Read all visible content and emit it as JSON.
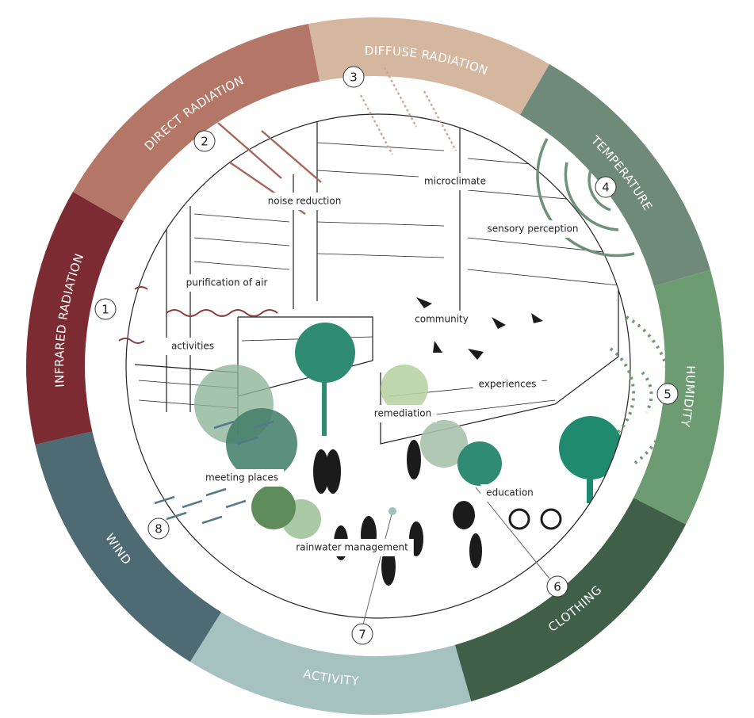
{
  "ring": [
    {
      "label": "DIFFUSE RADIATION"
    },
    {
      "label": "TEMPERATURE"
    },
    {
      "label": "HUMIDITY"
    },
    {
      "label": "CLOTHING"
    },
    {
      "label": "ACTIVITY"
    },
    {
      "label": "WIND"
    },
    {
      "label": "INFRARED RADIATION"
    },
    {
      "label": "DIRECT RADIATION"
    }
  ],
  "markers": [
    "1",
    "2",
    "3",
    "4",
    "5",
    "6",
    "7",
    "8"
  ],
  "labels": [
    "noise reduction",
    "microclimate",
    "sensory perception",
    "purification of air",
    "community",
    "activities",
    "experiences",
    "remediation",
    "meeting places",
    "education",
    "rainwater management"
  ]
}
